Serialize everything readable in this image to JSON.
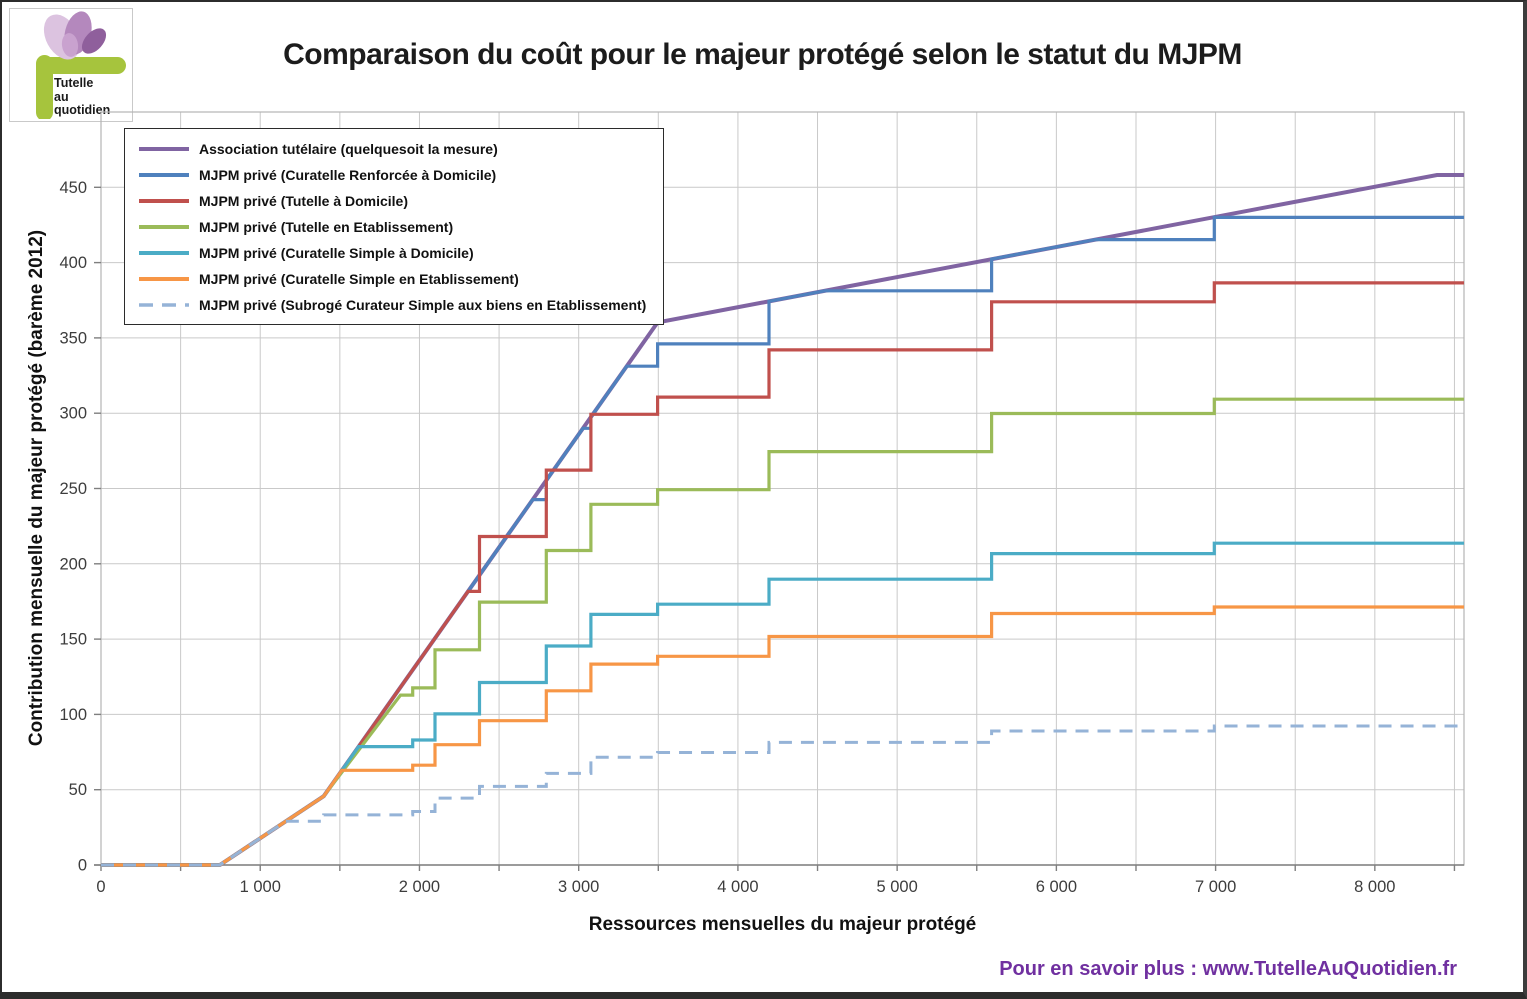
{
  "title": "Comparaison du coût pour le majeur protégé selon le statut du MJPM",
  "logo": {
    "line1": "Tutelle",
    "line2": "au",
    "line3": "quotidien",
    "green": "#a6c43d",
    "petal_dark": "#8f5f9c",
    "petal_mid": "#b488bd",
    "petal_light": "#dcc3e0"
  },
  "footer": {
    "text": "Pour en savoir plus : www.TutelleAuQuotidien.fr",
    "color": "#7030A0"
  },
  "chart_data": {
    "type": "line",
    "subtype": "step-function-comparison",
    "xlabel": "Ressources mensuelles du majeur protégé",
    "ylabel": "Contribution mensuelle du majeur protégé (barème 2012)",
    "xlim": [
      0,
      8560
    ],
    "ylim": [
      0,
      500
    ],
    "x_gridline_step": 500,
    "y_gridline_step": 50,
    "grid_color": "#c9c9c9",
    "border_color": "#b5b5b5",
    "axis_color": "#7f7f7f",
    "legend_position": "top-left-inside",
    "xticks": {
      "values": [
        0,
        1000,
        2000,
        3000,
        4000,
        5000,
        6000,
        7000,
        8000
      ],
      "labels": [
        "0",
        "1 000",
        "2 000",
        "3 000",
        "4 000",
        "5 000",
        "6 000",
        "7 000",
        "8 000"
      ]
    },
    "yticks": {
      "values": [
        0,
        50,
        100,
        150,
        200,
        250,
        300,
        350,
        400,
        450
      ],
      "labels": [
        "0",
        "50",
        "100",
        "150",
        "200",
        "250",
        "300",
        "350",
        "400",
        "450"
      ]
    },
    "series": [
      {
        "name": "Association tutélaire (quelquesoit la mesure)",
        "color": "#8064A2",
        "dash": false,
        "width": 4,
        "points": [
          [
            0,
            0
          ],
          [
            745.8,
            0
          ],
          [
            1398.4,
            45.7
          ],
          [
            3495.9,
            360.3
          ],
          [
            8390.2,
            458.2
          ],
          [
            8560,
            458.2
          ]
        ]
      },
      {
        "name": "MJPM privé (Curatelle Renforcée à Domicile)",
        "color": "#4F81BD",
        "dash": false,
        "width": 3.2,
        "points": [
          [
            0,
            0
          ],
          [
            745.8,
            0
          ],
          [
            1398.4,
            45.7
          ],
          [
            2711,
            242.6
          ],
          [
            2796.7,
            242.6
          ],
          [
            2796.7,
            255.4
          ],
          [
            3027,
            290
          ],
          [
            3076.4,
            290
          ],
          [
            3076.4,
            297.4
          ],
          [
            3302,
            331.2
          ],
          [
            3495.9,
            331.2
          ],
          [
            3495.9,
            346
          ],
          [
            4195.1,
            346
          ],
          [
            4195.1,
            374.3
          ],
          [
            4546,
            381.3
          ],
          [
            5593.5,
            381.3
          ],
          [
            5593.5,
            402.3
          ],
          [
            6246,
            415.3
          ],
          [
            6991.9,
            415.3
          ],
          [
            6991.9,
            430
          ],
          [
            8560,
            430
          ]
        ]
      },
      {
        "name": "MJPM privé (Tutelle à Domicile)",
        "color": "#C0504D",
        "dash": false,
        "width": 3.2,
        "points": [
          [
            0,
            0
          ],
          [
            745.8,
            0
          ],
          [
            1398.4,
            45.7
          ],
          [
            2305,
            181.7
          ],
          [
            2377.2,
            181.7
          ],
          [
            2377.2,
            218.1
          ],
          [
            2796.7,
            218.1
          ],
          [
            2796.7,
            262.2
          ],
          [
            3076.4,
            262.2
          ],
          [
            3076.4,
            299.3
          ],
          [
            3495.9,
            299.3
          ],
          [
            3495.9,
            310.7
          ],
          [
            4195.1,
            310.7
          ],
          [
            4195.1,
            342
          ],
          [
            5593.5,
            342
          ],
          [
            5593.5,
            374
          ],
          [
            6991.9,
            374
          ],
          [
            6991.9,
            386.5
          ],
          [
            8560,
            386.5
          ]
        ]
      },
      {
        "name": "MJPM privé (Tutelle en Etablissement)",
        "color": "#9BBB59",
        "dash": false,
        "width": 3.2,
        "points": [
          [
            0,
            0
          ],
          [
            745.8,
            0
          ],
          [
            1398.4,
            45.7
          ],
          [
            1881,
            112.8
          ],
          [
            1957.7,
            112.8
          ],
          [
            1957.7,
            117.6
          ],
          [
            2097.6,
            117.6
          ],
          [
            2097.6,
            142.9
          ],
          [
            2377.2,
            142.9
          ],
          [
            2377.2,
            174.6
          ],
          [
            2796.7,
            174.6
          ],
          [
            2796.7,
            208.8
          ],
          [
            3076.4,
            208.8
          ],
          [
            3076.4,
            239.5
          ],
          [
            3495.9,
            239.5
          ],
          [
            3495.9,
            249.2
          ],
          [
            4195.1,
            249.2
          ],
          [
            4195.1,
            274.5
          ],
          [
            5593.5,
            274.5
          ],
          [
            5593.5,
            299.8
          ],
          [
            6991.9,
            299.8
          ],
          [
            6991.9,
            309.3
          ],
          [
            8560,
            309.3
          ]
        ]
      },
      {
        "name": "MJPM privé (Curatelle Simple à Domicile)",
        "color": "#4BACC6",
        "dash": false,
        "width": 3.2,
        "points": [
          [
            0,
            0
          ],
          [
            745.8,
            0
          ],
          [
            1398.4,
            45.7
          ],
          [
            1618,
            78.6
          ],
          [
            1957.7,
            78.6
          ],
          [
            1957.7,
            83
          ],
          [
            2097.6,
            83
          ],
          [
            2097.6,
            100.3
          ],
          [
            2377.2,
            100.3
          ],
          [
            2377.2,
            121.2
          ],
          [
            2796.7,
            121.2
          ],
          [
            2796.7,
            145.4
          ],
          [
            3076.4,
            145.4
          ],
          [
            3076.4,
            166.4
          ],
          [
            3495.9,
            166.4
          ],
          [
            3495.9,
            173.2
          ],
          [
            4195.1,
            173.2
          ],
          [
            4195.1,
            189.8
          ],
          [
            5593.5,
            189.8
          ],
          [
            5593.5,
            206.8
          ],
          [
            6991.9,
            206.8
          ],
          [
            6991.9,
            213.7
          ],
          [
            8560,
            213.7
          ]
        ]
      },
      {
        "name": "MJPM privé (Curatelle Simple en Etablissement)",
        "color": "#F79646",
        "dash": false,
        "width": 3.2,
        "points": [
          [
            0,
            0
          ],
          [
            745.8,
            0
          ],
          [
            1398.4,
            45.7
          ],
          [
            1513,
            62.9
          ],
          [
            1957.7,
            62.9
          ],
          [
            1957.7,
            66.3
          ],
          [
            2097.6,
            66.3
          ],
          [
            2097.6,
            79.9
          ],
          [
            2377.2,
            79.9
          ],
          [
            2377.2,
            95.8
          ],
          [
            2796.7,
            95.8
          ],
          [
            2796.7,
            115.7
          ],
          [
            3076.4,
            115.7
          ],
          [
            3076.4,
            133.4
          ],
          [
            3495.9,
            133.4
          ],
          [
            3495.9,
            138.6
          ],
          [
            4195.1,
            138.6
          ],
          [
            4195.1,
            151.7
          ],
          [
            5593.5,
            151.7
          ],
          [
            5593.5,
            167
          ],
          [
            6991.9,
            167
          ],
          [
            6991.9,
            171.3
          ],
          [
            8560,
            171.3
          ]
        ]
      },
      {
        "name": "MJPM privé (Subrogé Curateur Simple aux biens en Etablissement)",
        "color": "#95B3D7",
        "dash": true,
        "width": 3,
        "points": [
          [
            0,
            0
          ],
          [
            745.8,
            0
          ],
          [
            1160,
            29
          ],
          [
            1398.4,
            29
          ],
          [
            1398.4,
            33.3
          ],
          [
            1957.7,
            33.3
          ],
          [
            1957.7,
            35.5
          ],
          [
            2097.6,
            35.5
          ],
          [
            2097.6,
            44.4
          ],
          [
            2377.2,
            44.4
          ],
          [
            2377.2,
            52.2
          ],
          [
            2796.7,
            52.2
          ],
          [
            2796.7,
            60.8
          ],
          [
            3076.4,
            60.8
          ],
          [
            3076.4,
            71.6
          ],
          [
            3495.9,
            71.6
          ],
          [
            3495.9,
            74.7
          ],
          [
            4195.1,
            74.7
          ],
          [
            4195.1,
            81.4
          ],
          [
            5593.5,
            81.4
          ],
          [
            5593.5,
            89
          ],
          [
            6991.9,
            89
          ],
          [
            6991.9,
            92.3
          ],
          [
            8560,
            92.3
          ]
        ]
      }
    ]
  }
}
